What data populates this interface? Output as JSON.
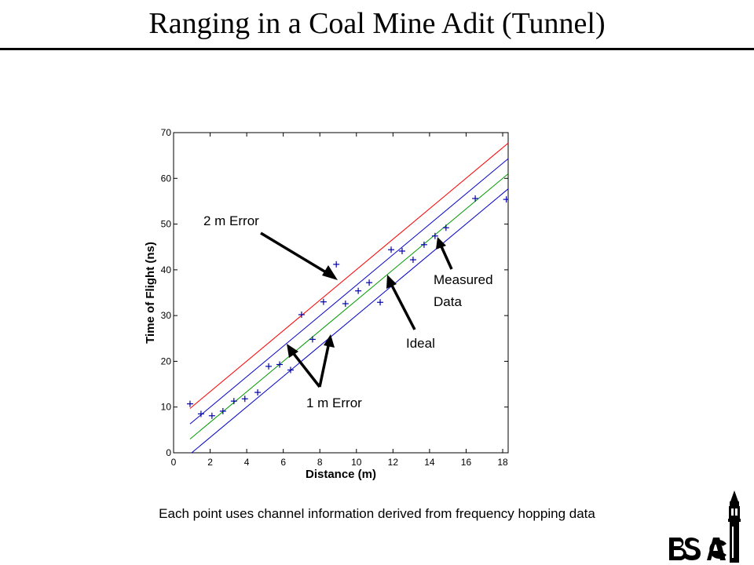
{
  "slide": {
    "title": "Ranging in a Coal Mine Adit (Tunnel)",
    "caption": "Each point uses channel information derived from frequency hopping data",
    "logo_text": "BSAC"
  },
  "chart_data": {
    "type": "scatter",
    "xlabel": "Distance (m)",
    "ylabel": "Time of Flight (ns)",
    "xlim": [
      0,
      18.3
    ],
    "ylim": [
      0,
      70
    ],
    "xticks": [
      0,
      2,
      4,
      6,
      8,
      10,
      12,
      14,
      16,
      18
    ],
    "yticks": [
      0,
      10,
      20,
      30,
      40,
      50,
      60,
      70
    ],
    "grid": false,
    "lines": [
      {
        "id": "plus2",
        "color": "#ff0000",
        "x": [
          0.9,
          18.3
        ],
        "y": [
          9.7,
          67.7
        ]
      },
      {
        "id": "plus1",
        "color": "#0000cc",
        "x": [
          0.9,
          18.3
        ],
        "y": [
          6.3,
          64.3
        ]
      },
      {
        "id": "ideal",
        "color": "#009900",
        "x": [
          0.9,
          18.3
        ],
        "y": [
          3.0,
          61.0
        ]
      },
      {
        "id": "minus1",
        "color": "#0000cc",
        "x": [
          0.9,
          18.3
        ],
        "y": [
          -0.3,
          57.7
        ]
      }
    ],
    "measured": {
      "color": "#0000aa",
      "points": [
        [
          0.9,
          10.7
        ],
        [
          1.5,
          8.5
        ],
        [
          2.1,
          8.1
        ],
        [
          2.7,
          9.1
        ],
        [
          3.3,
          11.3
        ],
        [
          3.9,
          11.8
        ],
        [
          4.6,
          13.2
        ],
        [
          5.2,
          18.9
        ],
        [
          5.8,
          19.3
        ],
        [
          6.4,
          18.1
        ],
        [
          7.0,
          30.2
        ],
        [
          7.6,
          24.8
        ],
        [
          8.2,
          33.0
        ],
        [
          8.9,
          41.2
        ],
        [
          9.4,
          32.6
        ],
        [
          10.1,
          35.4
        ],
        [
          10.7,
          37.2
        ],
        [
          11.3,
          32.9
        ],
        [
          11.9,
          44.4
        ],
        [
          12.5,
          44.1
        ],
        [
          13.1,
          42.2
        ],
        [
          13.7,
          45.5
        ],
        [
          14.3,
          47.4
        ],
        [
          14.9,
          49.2
        ],
        [
          16.5,
          55.6
        ],
        [
          18.2,
          55.4
        ]
      ]
    },
    "annotations": [
      {
        "id": "two-m-error",
        "text": "2 m Error"
      },
      {
        "id": "one-m-error",
        "text": "1 m Error"
      },
      {
        "id": "ideal",
        "text": "Ideal"
      },
      {
        "id": "measured-line1",
        "text": "Measured"
      },
      {
        "id": "measured-line2",
        "text": "Data"
      }
    ]
  }
}
